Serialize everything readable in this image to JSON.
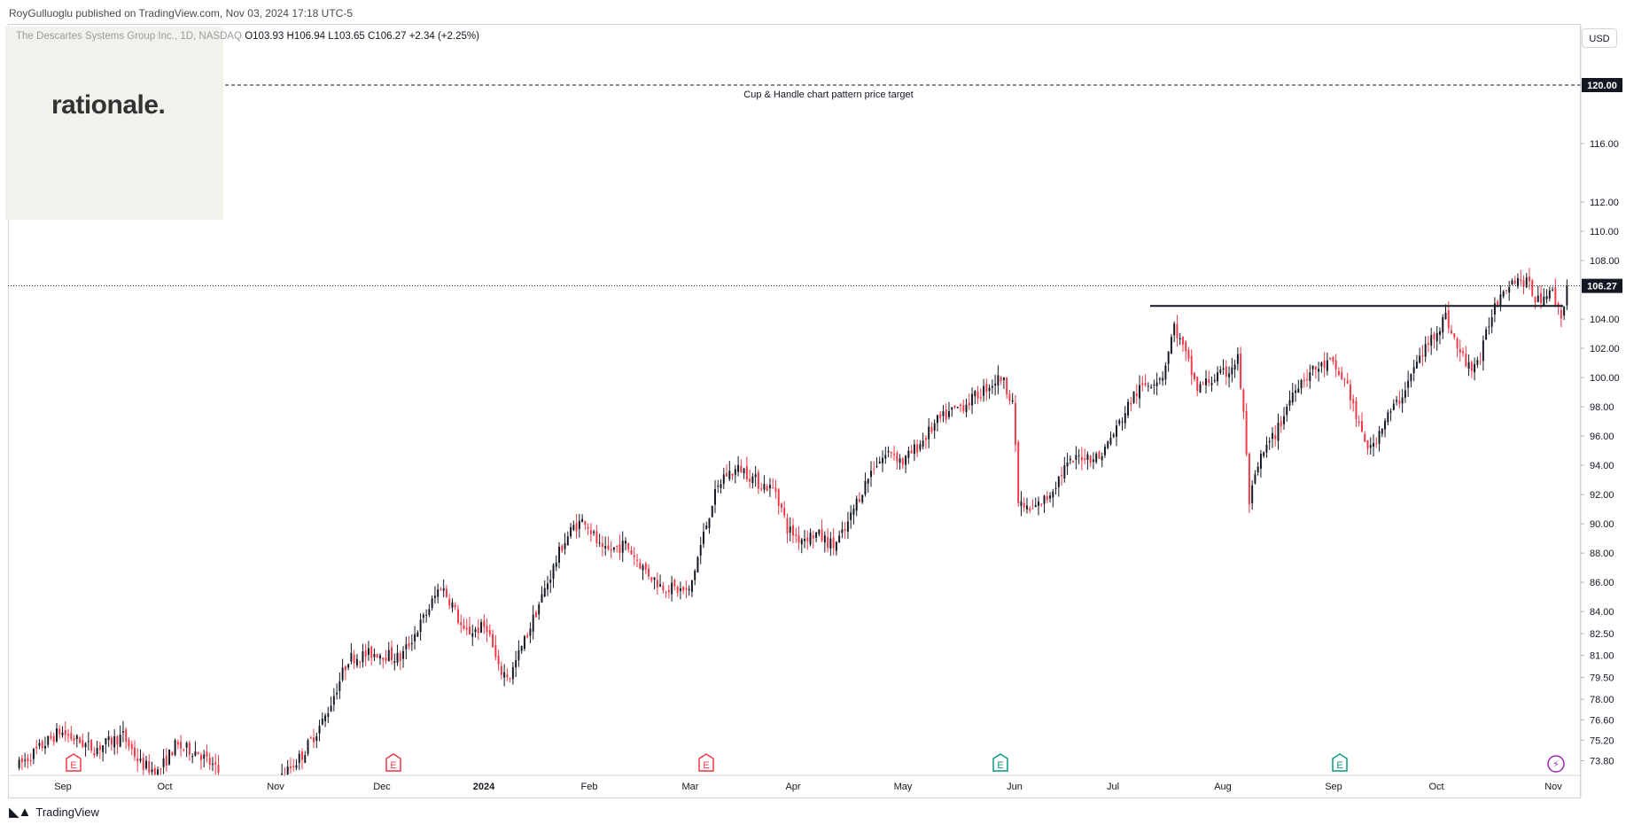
{
  "publisher_line": "RoyGulluoglu published on TradingView.com, Nov 03, 2024 17:18 UTC-5",
  "watermark": "rationale.",
  "symbol_name": "The Descartes Systems Group Inc., 1D, NASDAQ",
  "ohlc": {
    "open": "O103.93",
    "high": "H106.94",
    "low": "L103.65",
    "close": "C106.27",
    "change": "+2.34 (+2.25%)"
  },
  "currency_button": "USD",
  "footer_brand": "TradingView",
  "colors": {
    "up": "#131722",
    "down": "#f23645",
    "earnings": "#f23645",
    "earnings_future": "#089981",
    "dividend": "#9c27b0"
  },
  "chart_data": {
    "type": "candlestick",
    "instrument": "The Descartes Systems Group Inc.",
    "interval": "1D",
    "exchange": "NASDAQ",
    "price_axis": {
      "min": 72.8,
      "max": 124.0,
      "labels": [
        "120.00",
        "116.00",
        "112.00",
        "110.00",
        "108.00",
        "106.27",
        "104.00",
        "102.00",
        "100.00",
        "98.00",
        "96.00",
        "94.00",
        "92.00",
        "90.00",
        "88.00",
        "86.00",
        "84.00",
        "82.50",
        "81.00",
        "79.50",
        "78.00",
        "76.60",
        "75.20",
        "73.80"
      ]
    },
    "time_axis": {
      "labels": [
        "Sep",
        "Oct",
        "Nov",
        "Dec",
        "2024",
        "Feb",
        "Mar",
        "Apr",
        "May",
        "Jun",
        "Jul",
        "Aug",
        "Sep",
        "Oct",
        "Nov"
      ]
    },
    "last_price": 106.27,
    "price_target": {
      "value": 120.0,
      "label_value": "120.00",
      "text": "Cup & Handle chart pattern price target"
    },
    "resistance_level": 104.9,
    "event_markers": [
      {
        "type": "E",
        "month": "Sep"
      },
      {
        "type": "E",
        "month": "Dec"
      },
      {
        "type": "E",
        "month": "Mar"
      },
      {
        "type": "E",
        "month": "Jun"
      },
      {
        "type": "E",
        "month": "Sep"
      },
      {
        "type": "D",
        "month": "Nov"
      }
    ],
    "path_points": [
      [
        0,
        73.5
      ],
      [
        14,
        75.8
      ],
      [
        26,
        74.6
      ],
      [
        36,
        75.5
      ],
      [
        42,
        73.6
      ],
      [
        48,
        73.0
      ],
      [
        54,
        74.8
      ],
      [
        62,
        74.4
      ],
      [
        70,
        72.8
      ],
      [
        90,
        72.5
      ],
      [
        98,
        74.2
      ],
      [
        106,
        76.8
      ],
      [
        114,
        80.8
      ],
      [
        124,
        81.2
      ],
      [
        132,
        80.8
      ],
      [
        140,
        83.5
      ],
      [
        146,
        85.8
      ],
      [
        150,
        84.5
      ],
      [
        154,
        82.5
      ],
      [
        162,
        83.0
      ],
      [
        166,
        80.0
      ],
      [
        170,
        79.6
      ],
      [
        176,
        82.5
      ],
      [
        182,
        85.5
      ],
      [
        188,
        88.5
      ],
      [
        192,
        89.8
      ],
      [
        196,
        90.3
      ],
      [
        202,
        88.0
      ],
      [
        210,
        88.6
      ],
      [
        216,
        87.0
      ],
      [
        222,
        85.8
      ],
      [
        228,
        85.5
      ],
      [
        232,
        85.3
      ],
      [
        236,
        88.5
      ],
      [
        240,
        91.5
      ],
      [
        244,
        93.3
      ],
      [
        250,
        93.8
      ],
      [
        256,
        92.8
      ],
      [
        262,
        92.3
      ],
      [
        266,
        89.7
      ],
      [
        270,
        89.0
      ],
      [
        276,
        89.3
      ],
      [
        282,
        88.5
      ],
      [
        286,
        89.5
      ],
      [
        290,
        91.5
      ],
      [
        296,
        94.0
      ],
      [
        302,
        95.0
      ],
      [
        306,
        94.2
      ],
      [
        312,
        95.5
      ],
      [
        318,
        97.0
      ],
      [
        324,
        97.8
      ],
      [
        330,
        98.5
      ],
      [
        336,
        99.5
      ],
      [
        340,
        100.0
      ],
      [
        344,
        98.5
      ],
      [
        346,
        91.5
      ],
      [
        350,
        90.8
      ],
      [
        356,
        91.8
      ],
      [
        362,
        93.8
      ],
      [
        368,
        94.7
      ],
      [
        374,
        94.5
      ],
      [
        380,
        96.5
      ],
      [
        386,
        98.8
      ],
      [
        390,
        99.5
      ],
      [
        396,
        100.2
      ],
      [
        400,
        103.5
      ],
      [
        404,
        101.5
      ],
      [
        408,
        99.2
      ],
      [
        412,
        99.8
      ],
      [
        418,
        100.3
      ],
      [
        422,
        101.3
      ],
      [
        424,
        97.5
      ],
      [
        426,
        91.5
      ],
      [
        430,
        94.5
      ],
      [
        436,
        96.5
      ],
      [
        442,
        99.5
      ],
      [
        448,
        100.5
      ],
      [
        454,
        101.0
      ],
      [
        460,
        99.5
      ],
      [
        464,
        96.5
      ],
      [
        468,
        95.0
      ],
      [
        472,
        96.8
      ],
      [
        478,
        98.5
      ],
      [
        484,
        101.0
      ],
      [
        490,
        103.0
      ],
      [
        494,
        104.2
      ],
      [
        498,
        102.0
      ],
      [
        502,
        100.7
      ],
      [
        506,
        101.3
      ],
      [
        510,
        104.5
      ],
      [
        514,
        106.2
      ],
      [
        518,
        106.8
      ],
      [
        522,
        106.5
      ],
      [
        526,
        105.2
      ],
      [
        530,
        106.2
      ],
      [
        534,
        104.2
      ],
      [
        536,
        106.27
      ]
    ],
    "n_days": 537
  }
}
